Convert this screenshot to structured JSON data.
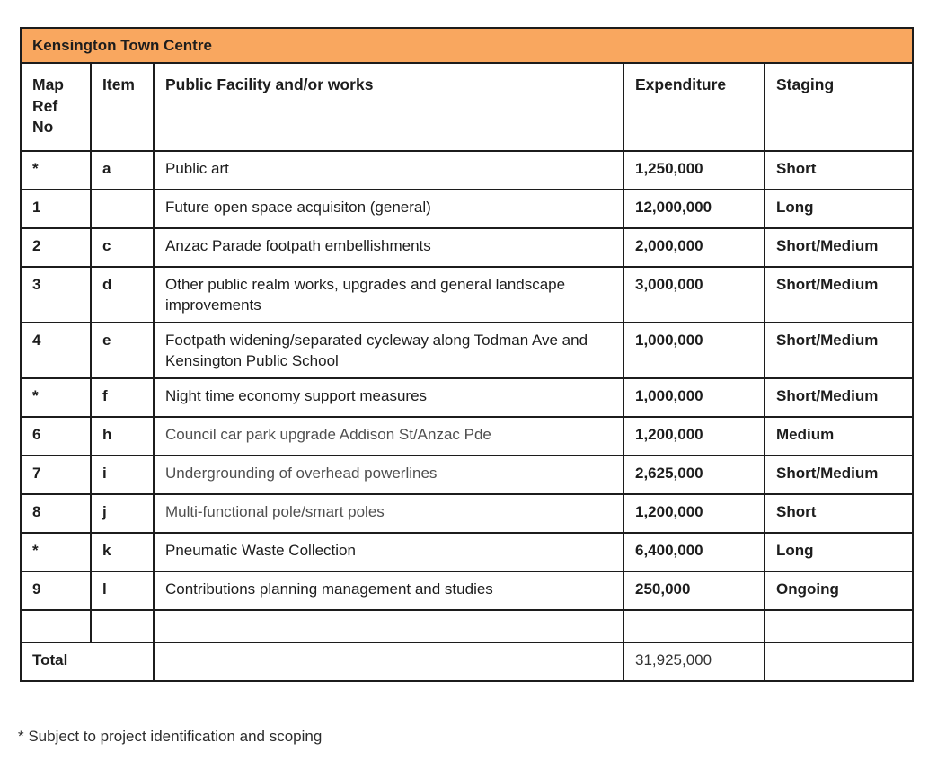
{
  "title_bar": {
    "title": "Kensington Town Centre"
  },
  "colors": {
    "header_orange": "#F9A75F",
    "border": "#1c1c1c",
    "text": "#1d1d1d",
    "muted_text": "#4f4f4f"
  },
  "table": {
    "columns": [
      {
        "label": "Map Ref No"
      },
      {
        "label": "Item"
      },
      {
        "label": "Public Facility and/or works"
      },
      {
        "label": "Expenditure"
      },
      {
        "label": "Staging"
      }
    ],
    "rows": [
      {
        "map_ref": "*",
        "item": "a",
        "facility": "Public art",
        "expenditure": "1,250,000",
        "staging": "Short",
        "muted": false
      },
      {
        "map_ref": "1",
        "item": "",
        "facility": "Future open space acquisiton (general)",
        "expenditure": "12,000,000",
        "staging": "Long",
        "muted": false
      },
      {
        "map_ref": "2",
        "item": "c",
        "facility": "Anzac Parade footpath embellishments",
        "expenditure": "2,000,000",
        "staging": "Short/Medium",
        "muted": false
      },
      {
        "map_ref": "3",
        "item": "d",
        "facility": "Other public realm works, upgrades and general landscape improvements",
        "expenditure": "3,000,000",
        "staging": "Short/Medium",
        "muted": false
      },
      {
        "map_ref": "4",
        "item": "e",
        "facility": "Footpath widening/separated cycleway along Todman Ave and Kensington Public School",
        "expenditure": "1,000,000",
        "staging": "Short/Medium",
        "muted": false
      },
      {
        "map_ref": "*",
        "item": "f",
        "facility": "Night time economy support measures",
        "expenditure": "1,000,000",
        "staging": "Short/Medium",
        "muted": false
      },
      {
        "map_ref": "6",
        "item": "h",
        "facility": "Council car park upgrade Addison St/Anzac Pde",
        "expenditure": "1,200,000",
        "staging": "Medium",
        "muted": true
      },
      {
        "map_ref": "7",
        "item": "i",
        "facility": "Undergrounding of overhead powerlines",
        "expenditure": "2,625,000",
        "staging": "Short/Medium",
        "muted": true
      },
      {
        "map_ref": "8",
        "item": "j",
        "facility": "Multi-functional pole/smart poles",
        "expenditure": "1,200,000",
        "staging": "Short",
        "muted": true
      },
      {
        "map_ref": "*",
        "item": "k",
        "facility": "Pneumatic Waste Collection",
        "expenditure": "6,400,000",
        "staging": "Long",
        "muted": false
      },
      {
        "map_ref": "9",
        "item": "l",
        "facility": "Contributions planning management and studies",
        "expenditure": "250,000",
        "staging": "Ongoing",
        "muted": false
      }
    ],
    "total": {
      "label": "Total",
      "expenditure": "31,925,000",
      "staging": ""
    }
  },
  "footnote": "* Subject to project identification and scoping"
}
